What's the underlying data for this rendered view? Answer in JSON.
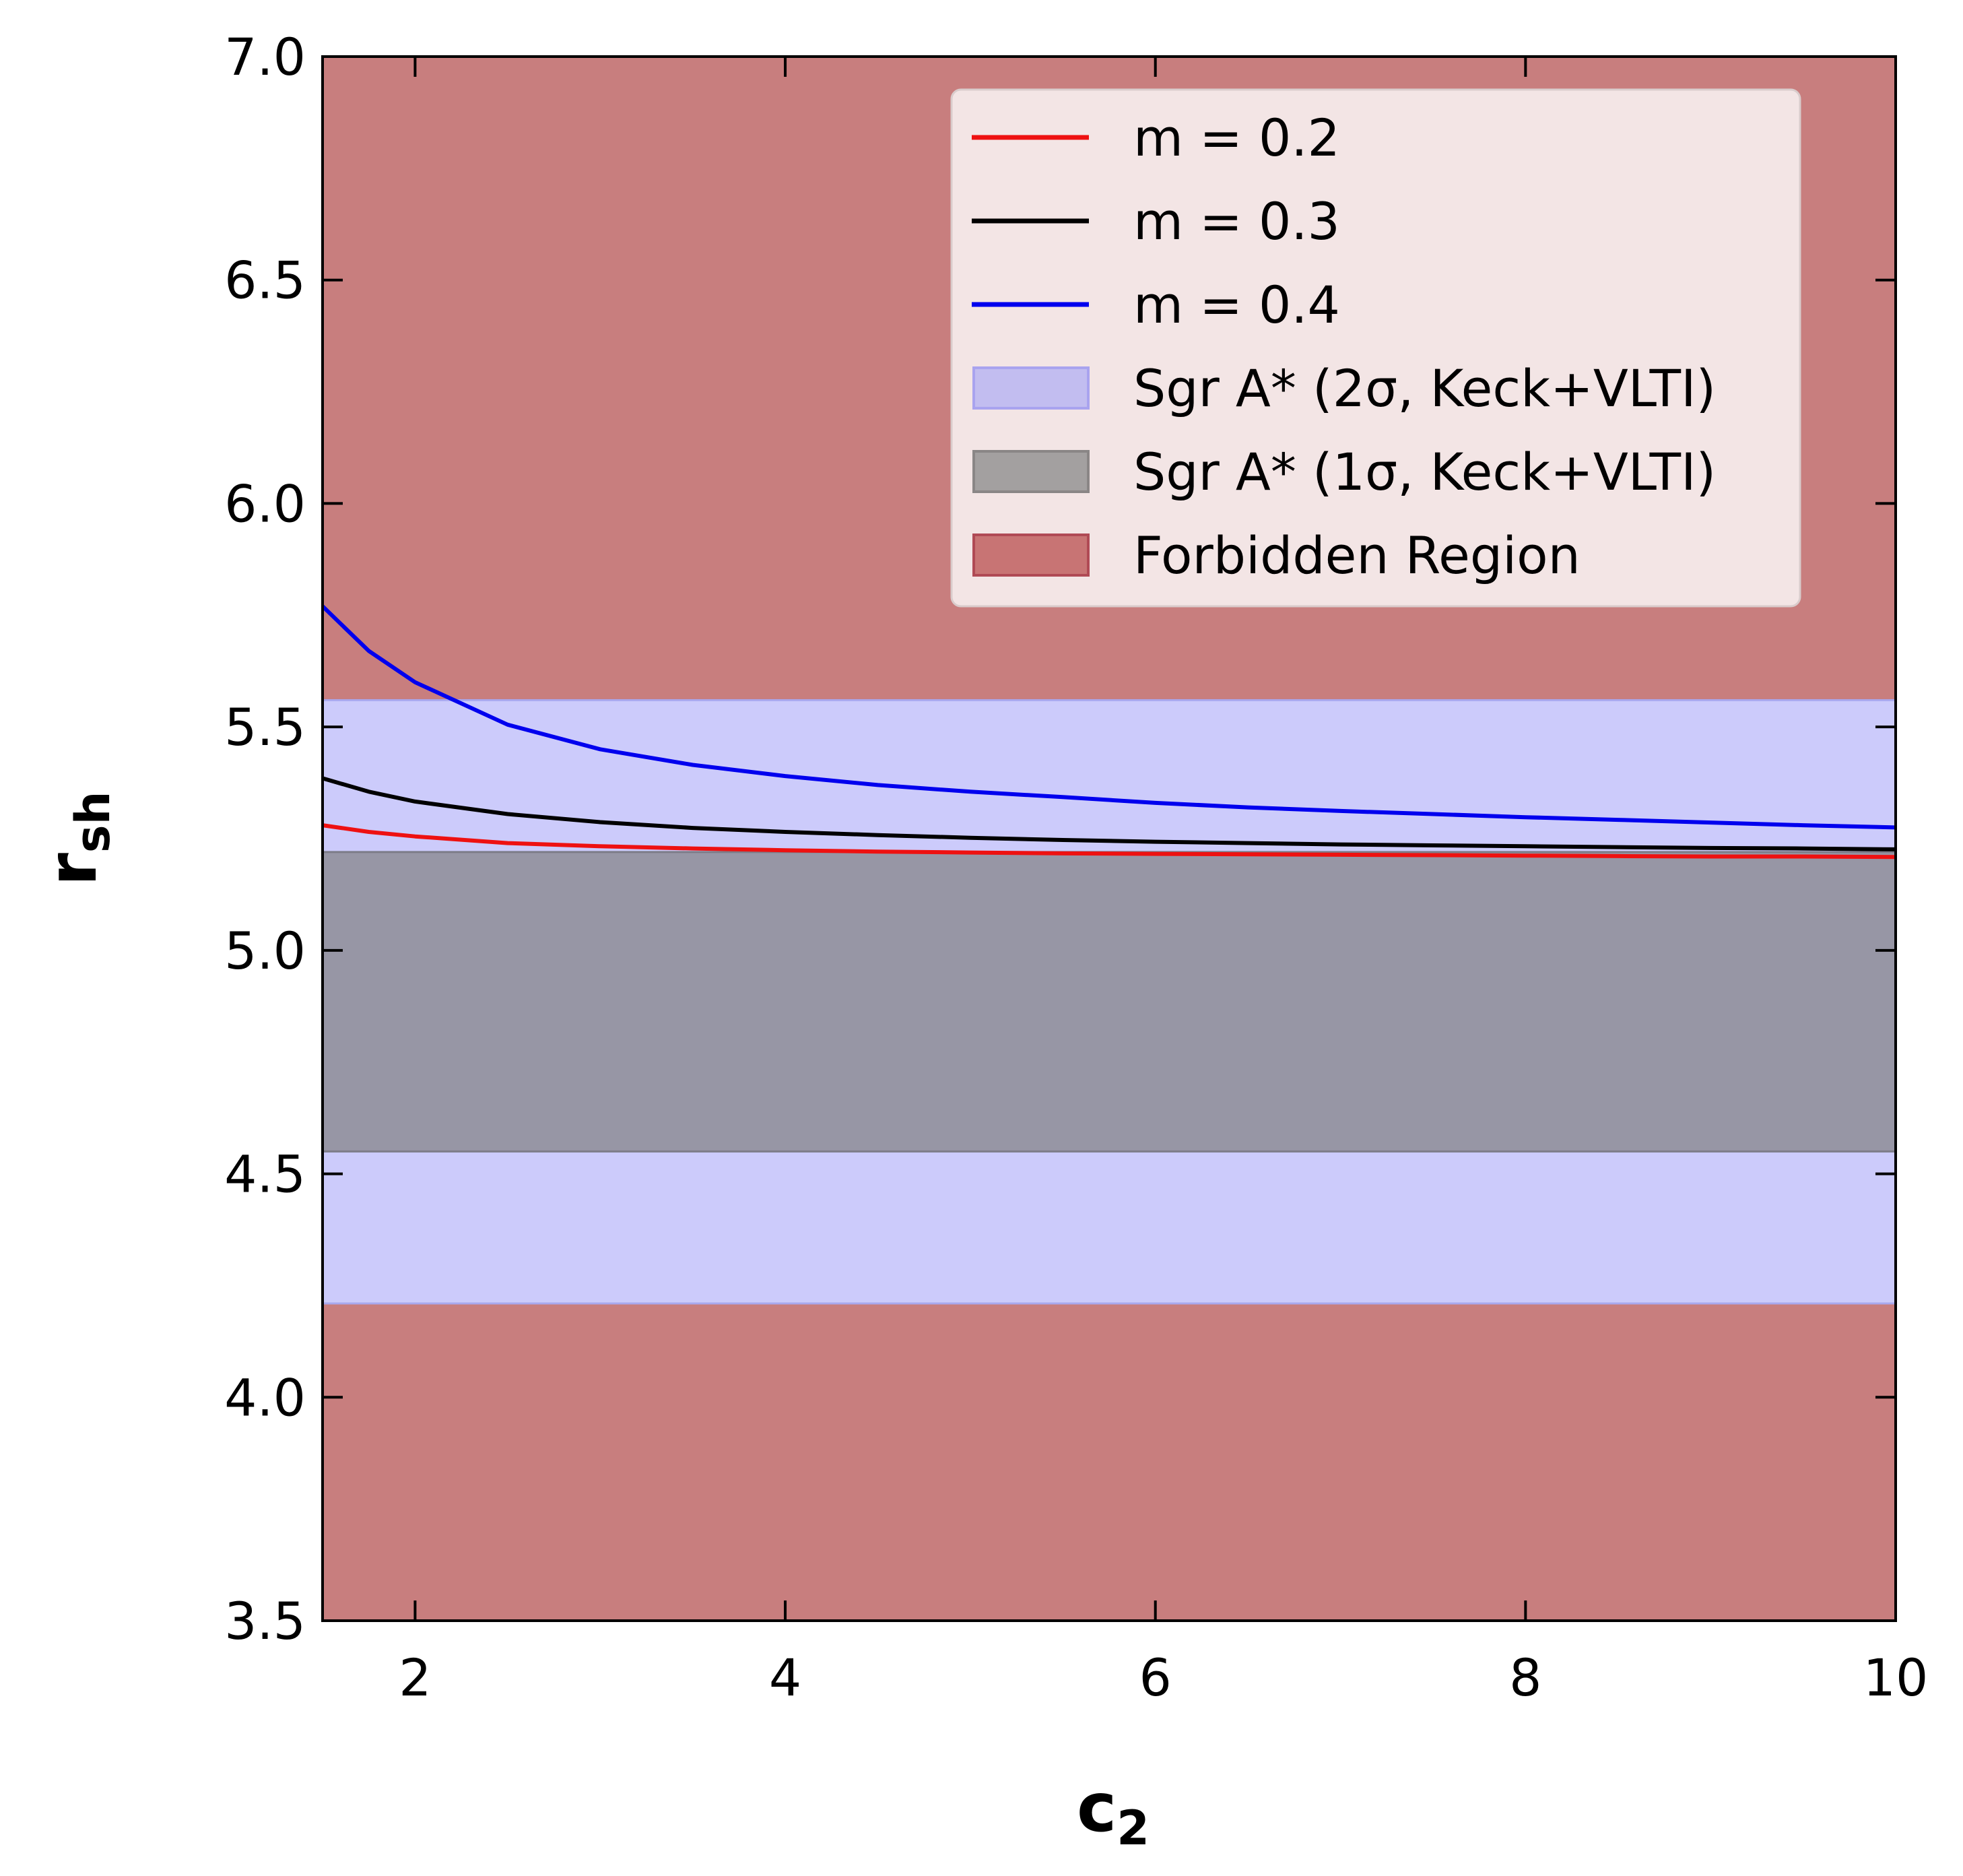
{
  "chart_data": {
    "type": "line",
    "xlabel": {
      "base": "c",
      "sub": "2"
    },
    "ylabel": {
      "base": "r",
      "sub": "sh"
    },
    "xlim": [
      1.5,
      10
    ],
    "ylim": [
      3.5,
      7.0
    ],
    "x_ticks": [
      2,
      4,
      6,
      8,
      10
    ],
    "y_ticks": [
      3.5,
      4.0,
      4.5,
      5.0,
      5.5,
      6.0,
      6.5,
      7.0
    ],
    "x_tick_labels": [
      "2",
      "4",
      "6",
      "8",
      "10"
    ],
    "y_tick_labels": [
      "3.5",
      "4.0",
      "4.5",
      "5.0",
      "5.5",
      "6.0",
      "6.5",
      "7.0"
    ],
    "bands": [
      {
        "name": "Forbidden Region",
        "range": [
          5.56,
          7.0
        ],
        "fill": "#c87e7e",
        "edge": "#b34a5a"
      },
      {
        "name": "Forbidden Region",
        "range": [
          3.5,
          4.21
        ],
        "fill": "#c87e7e",
        "edge": "#b34a5a"
      },
      {
        "name": "Sgr A* (2σ, Keck+VLTI)",
        "range": [
          4.21,
          5.56
        ],
        "fill": "#cccbfb",
        "edge": "#a9a8ee"
      },
      {
        "name": "Sgr A* (1σ, Keck+VLTI)",
        "range": [
          4.55,
          5.22
        ],
        "fill": "#9796a5",
        "edge": "#7d7c88"
      }
    ],
    "x": [
      1.5,
      1.75,
      2.0,
      2.5,
      3.0,
      3.5,
      4.0,
      4.5,
      5.0,
      5.5,
      6.0,
      6.5,
      7.0,
      7.5,
      8.0,
      8.5,
      9.0,
      9.5,
      10.0
    ],
    "series": [
      {
        "name": "m = 0.2",
        "color": "#ee1111",
        "values": [
          5.28,
          5.265,
          5.255,
          5.24,
          5.233,
          5.228,
          5.224,
          5.221,
          5.219,
          5.217,
          5.216,
          5.215,
          5.214,
          5.213,
          5.212,
          5.211,
          5.21,
          5.21,
          5.209
        ]
      },
      {
        "name": "m = 0.3",
        "color": "#000000",
        "values": [
          5.385,
          5.355,
          5.333,
          5.305,
          5.287,
          5.274,
          5.265,
          5.258,
          5.252,
          5.247,
          5.243,
          5.24,
          5.237,
          5.235,
          5.233,
          5.231,
          5.229,
          5.228,
          5.226
        ]
      },
      {
        "name": "m = 0.4",
        "color": "#0000ee",
        "values": [
          5.77,
          5.67,
          5.6,
          5.505,
          5.45,
          5.415,
          5.39,
          5.37,
          5.355,
          5.343,
          5.33,
          5.32,
          5.312,
          5.305,
          5.298,
          5.292,
          5.286,
          5.28,
          5.275
        ]
      }
    ],
    "legend": {
      "position": "top-right",
      "entries": [
        {
          "label": "m = 0.2",
          "kind": "line",
          "color": "#ee1111"
        },
        {
          "label": "m = 0.3",
          "kind": "line",
          "color": "#000000"
        },
        {
          "label": "m = 0.4",
          "kind": "line",
          "color": "#0000ee"
        },
        {
          "label": "Sgr A* (2σ, Keck+VLTI)",
          "kind": "patch",
          "color": "#c2bdf0",
          "edge": "#a9a3ef"
        },
        {
          "label": "Sgr A* (1σ, Keck+VLTI)",
          "kind": "patch",
          "color": "#a3a0a0",
          "edge": "#8a8686"
        },
        {
          "label": "Forbidden Region",
          "kind": "patch",
          "color": "#c87474",
          "edge": "#b04a55"
        }
      ]
    }
  }
}
